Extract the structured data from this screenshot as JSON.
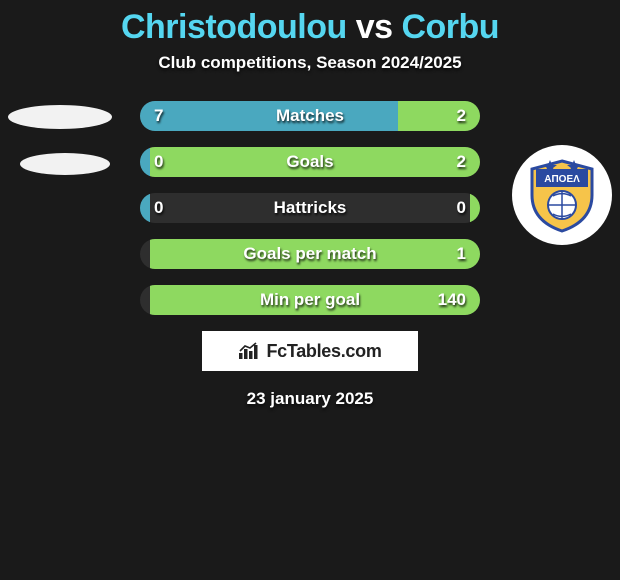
{
  "title": {
    "player1": "Christodoulou",
    "vs": "vs",
    "player2": "Corbu"
  },
  "subtitle": "Club competitions, Season 2024/2025",
  "colors": {
    "accent": "#55d6f0",
    "left_bar": "#4aa8bf",
    "right_bar": "#8ed960",
    "track": "#2e2e2e",
    "background": "#1a1a1a"
  },
  "stats": [
    {
      "label": "Matches",
      "left_val": "7",
      "right_val": "2",
      "left_pct": 76,
      "right_pct": 24
    },
    {
      "label": "Goals",
      "left_val": "0",
      "right_val": "2",
      "left_pct": 3,
      "right_pct": 97
    },
    {
      "label": "Hattricks",
      "left_val": "0",
      "right_val": "0",
      "left_pct": 3,
      "right_pct": 3
    },
    {
      "label": "Goals per match",
      "left_val": "",
      "right_val": "1",
      "left_pct": 0,
      "right_pct": 97
    },
    {
      "label": "Min per goal",
      "left_val": "",
      "right_val": "140",
      "left_pct": 0,
      "right_pct": 97
    }
  ],
  "team_right": {
    "name": "APOEL",
    "crest_text": "ΑΠΟΕΛ"
  },
  "footer": {
    "brand": "FcTables.com",
    "date": "23 january 2025"
  }
}
